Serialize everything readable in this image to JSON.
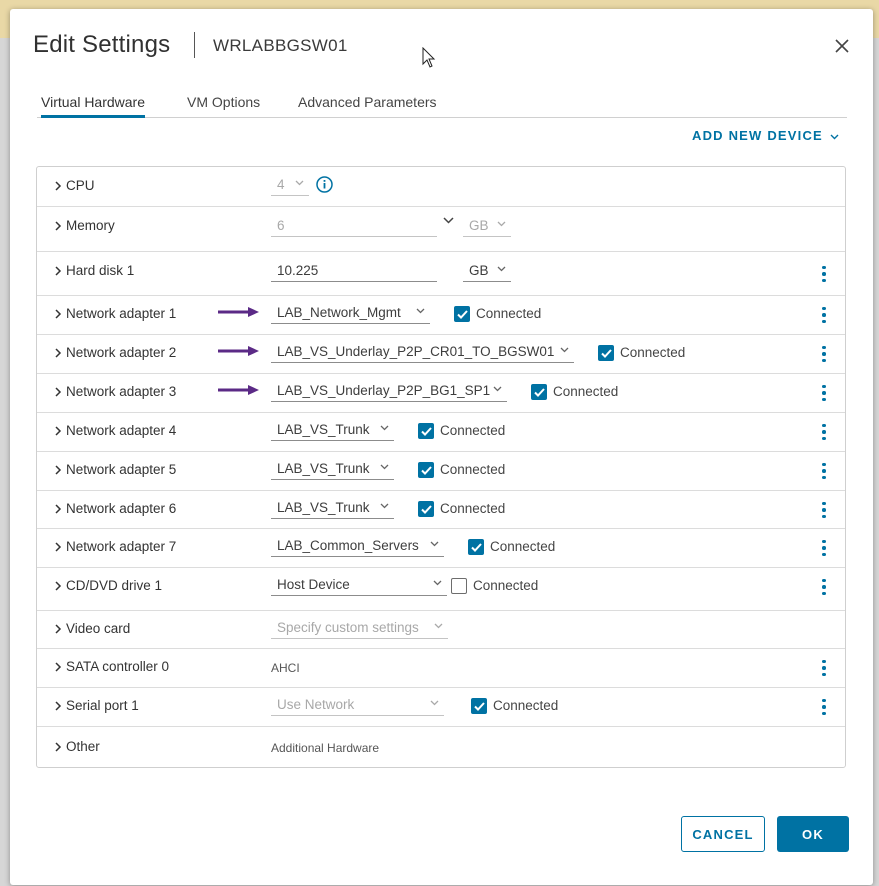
{
  "dialog": {
    "title": "Edit Settings",
    "vm_name": "WRLABBGSW01"
  },
  "tabs": [
    {
      "label": "Virtual Hardware",
      "active": true
    },
    {
      "label": "VM Options",
      "active": false
    },
    {
      "label": "Advanced Parameters",
      "active": false
    }
  ],
  "add_device_label": "ADD NEW DEVICE",
  "connected_label": "Connected",
  "rows": {
    "cpu": {
      "label": "CPU",
      "value": "4"
    },
    "memory": {
      "label": "Memory",
      "value": "6",
      "unit": "GB"
    },
    "hard_disk": {
      "label": "Hard disk 1",
      "value": "10.225",
      "unit": "GB"
    },
    "net1": {
      "label": "Network adapter 1",
      "value": "LAB_Network_Mgmt",
      "connected": true
    },
    "net2": {
      "label": "Network adapter 2",
      "value": "LAB_VS_Underlay_P2P_CR01_TO_BGSW01",
      "connected": true
    },
    "net3": {
      "label": "Network adapter 3",
      "value": "LAB_VS_Underlay_P2P_BG1_SP1",
      "connected": true
    },
    "net4": {
      "label": "Network adapter 4",
      "value": "LAB_VS_Trunk",
      "connected": true
    },
    "net5": {
      "label": "Network adapter 5",
      "value": "LAB_VS_Trunk",
      "connected": true
    },
    "net6": {
      "label": "Network adapter 6",
      "value": "LAB_VS_Trunk",
      "connected": true
    },
    "net7": {
      "label": "Network adapter 7",
      "value": "LAB_Common_Servers",
      "connected": true
    },
    "cd": {
      "label": "CD/DVD drive 1",
      "value": "Host Device",
      "connected": false
    },
    "video": {
      "label": "Video card",
      "value": "Specify custom settings"
    },
    "sata": {
      "label": "SATA controller 0",
      "value": "AHCI"
    },
    "serial": {
      "label": "Serial port 1",
      "value": "Use Network",
      "connected": true
    },
    "other": {
      "label": "Other",
      "value": "Additional Hardware"
    }
  },
  "buttons": {
    "cancel": "CANCEL",
    "ok": "OK"
  },
  "colors": {
    "accent": "#0072a3",
    "annotation_arrow": "#5b2a86"
  },
  "icons": [
    "close-icon",
    "chevron-right-icon",
    "chevron-down-icon",
    "info-icon",
    "kebab-menu-icon",
    "checkmark-icon",
    "mouse-cursor-icon",
    "arrow-annotation-icon"
  ]
}
